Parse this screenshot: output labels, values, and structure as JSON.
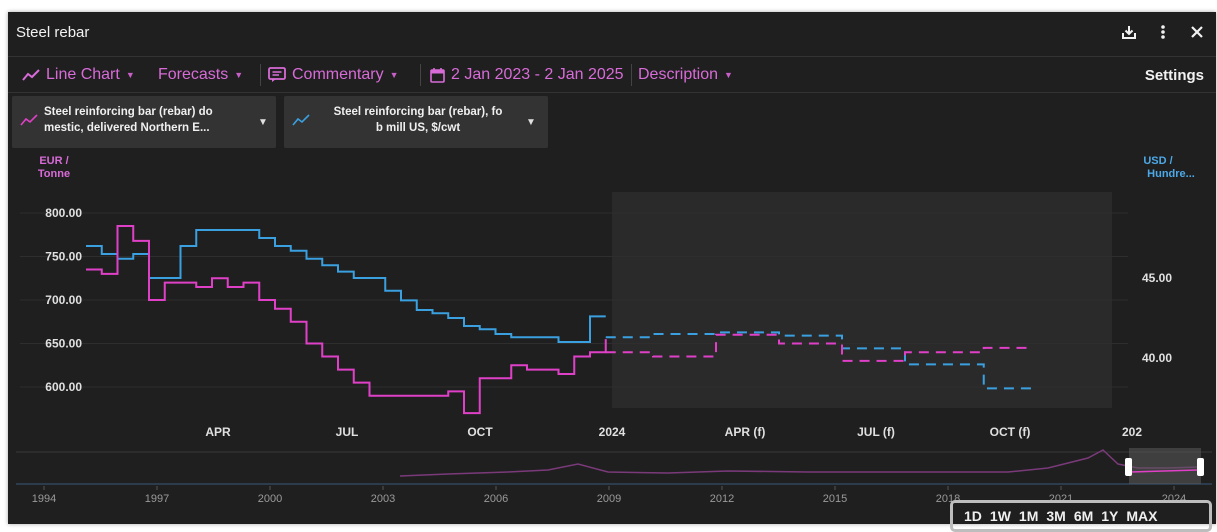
{
  "window": {
    "title": "Steel rebar"
  },
  "toolbar": {
    "chart_type": "Line Chart",
    "forecasts": "Forecasts",
    "commentary": "Commentary",
    "date_range": "2 Jan 2023 - 2 Jan 2025",
    "description": "Description",
    "settings": "Settings"
  },
  "series_selectors": [
    {
      "line1": "Steel reinforcing bar (rebar) do",
      "line2": "mestic, delivered Northern E...",
      "color": "#e040c8"
    },
    {
      "line1": "Steel reinforcing bar (rebar), fo",
      "line2": "b mill US, $/cwt",
      "color": "#3aa0e0"
    }
  ],
  "colors": {
    "eur_series": "#e040c8",
    "usd_series": "#3aa0e0",
    "background": "#1f1f1f"
  },
  "icons": [
    "line-chart-icon",
    "comment-icon",
    "calendar-icon",
    "download-icon",
    "more-icon",
    "close-icon"
  ],
  "chart_data": {
    "type": "line",
    "left_axis": {
      "label_line1": "EUR /",
      "label_line2": "Tonne",
      "ticks": [
        "800.00",
        "750.00",
        "700.00",
        "650.00",
        "600.00"
      ]
    },
    "right_axis": {
      "label_line1": "USD /",
      "label_line2": "Hundre...",
      "ticks": [
        "45.00",
        "40.00"
      ]
    },
    "x_ticks": [
      "APR",
      "JUL",
      "OCT",
      "2024",
      "APR (f)",
      "JUL (f)",
      "OCT (f)",
      "202"
    ],
    "navigator_ticks": [
      "1994",
      "1997",
      "2000",
      "2003",
      "2006",
      "2009",
      "2012",
      "2015",
      "2018",
      "2021",
      "2024"
    ],
    "range_buttons": [
      "1D",
      "1W",
      "1M",
      "3M",
      "6M",
      "1Y",
      "MAX"
    ],
    "series": [
      {
        "axis": "left",
        "unit": "EUR / Tonne",
        "actual": [
          [
            0,
            735
          ],
          [
            1,
            730
          ],
          [
            2,
            785
          ],
          [
            3,
            768
          ],
          [
            4,
            700
          ],
          [
            5,
            720
          ],
          [
            6,
            720
          ],
          [
            7,
            715
          ],
          [
            8,
            725
          ],
          [
            9,
            715
          ],
          [
            10,
            720
          ],
          [
            11,
            700
          ],
          [
            12,
            690
          ],
          [
            13,
            675
          ],
          [
            14,
            650
          ],
          [
            15,
            635
          ],
          [
            16,
            620
          ],
          [
            17,
            605
          ],
          [
            18,
            590
          ],
          [
            19,
            590
          ],
          [
            20,
            590
          ],
          [
            21,
            590
          ],
          [
            22,
            590
          ],
          [
            23,
            595
          ],
          [
            24,
            570
          ],
          [
            25,
            610
          ],
          [
            26,
            610
          ],
          [
            27,
            625
          ],
          [
            28,
            620
          ],
          [
            29,
            620
          ],
          [
            30,
            615
          ],
          [
            31,
            635
          ],
          [
            32,
            640
          ],
          [
            33,
            655
          ]
        ],
        "forecast": [
          [
            33,
            640
          ],
          [
            36,
            635
          ],
          [
            40,
            660
          ],
          [
            44,
            650
          ],
          [
            48,
            630
          ],
          [
            52,
            640
          ],
          [
            57,
            645
          ],
          [
            60,
            645
          ]
        ]
      },
      {
        "axis": "right",
        "unit": "USD / Hundredweight",
        "actual": [
          [
            0,
            47.0
          ],
          [
            1,
            46.5
          ],
          [
            2,
            46.2
          ],
          [
            3,
            46.5
          ],
          [
            4,
            45.0
          ],
          [
            5,
            45.0
          ],
          [
            6,
            47.0
          ],
          [
            7,
            48.0
          ],
          [
            8,
            48.0
          ],
          [
            9,
            48.0
          ],
          [
            10,
            48.0
          ],
          [
            11,
            47.5
          ],
          [
            12,
            47.0
          ],
          [
            13,
            46.7
          ],
          [
            14,
            46.2
          ],
          [
            15,
            45.8
          ],
          [
            16,
            45.4
          ],
          [
            17,
            45.0
          ],
          [
            18,
            45.0
          ],
          [
            19,
            44.2
          ],
          [
            20,
            43.6
          ],
          [
            21,
            43.0
          ],
          [
            22,
            42.8
          ],
          [
            23,
            42.5
          ],
          [
            24,
            42.0
          ],
          [
            25,
            41.8
          ],
          [
            26,
            41.5
          ],
          [
            27,
            41.3
          ],
          [
            28,
            41.3
          ],
          [
            29,
            41.3
          ],
          [
            30,
            41.0
          ],
          [
            31,
            41.0
          ],
          [
            32,
            42.6
          ],
          [
            33,
            42.6
          ]
        ],
        "forecast": [
          [
            33,
            41.3
          ],
          [
            36,
            41.5
          ],
          [
            40,
            41.6
          ],
          [
            44,
            41.4
          ],
          [
            48,
            40.6
          ],
          [
            52,
            39.6
          ],
          [
            57,
            38.1
          ],
          [
            60,
            38.4
          ]
        ]
      }
    ]
  }
}
